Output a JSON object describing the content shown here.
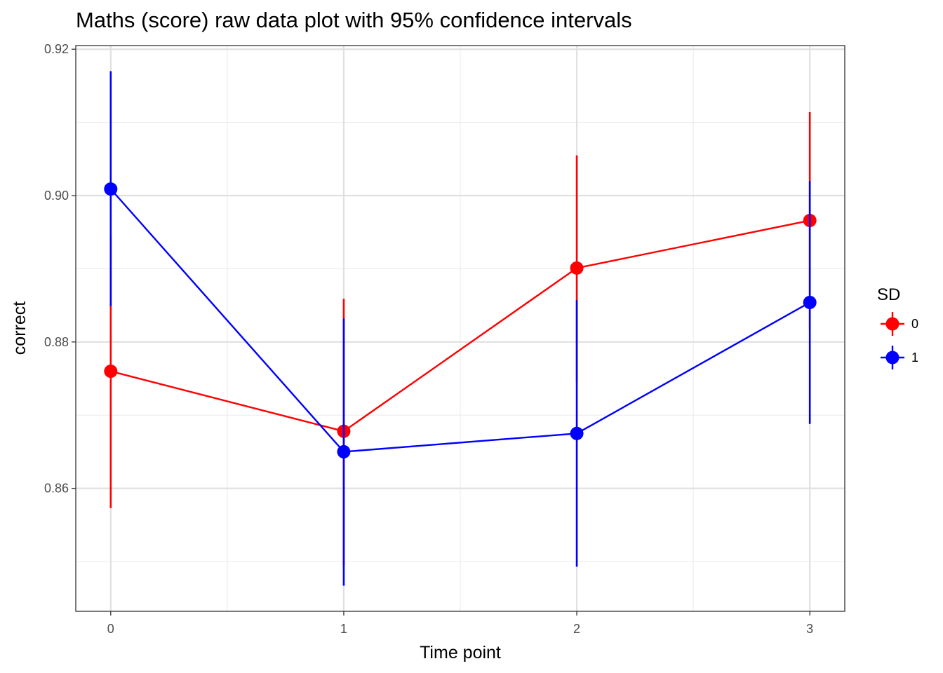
{
  "chart_data": {
    "type": "line",
    "title": "Maths (score) raw data plot with 95% confidence intervals",
    "xlabel": "Time point",
    "ylabel": "correct",
    "x": [
      0,
      1,
      2,
      3
    ],
    "x_ticks": [
      "0",
      "1",
      "2",
      "3"
    ],
    "xlim": [
      -0.15,
      3.15
    ],
    "y_ticks": [
      "0.86",
      "0.88",
      "0.90",
      "0.92"
    ],
    "y_tick_values": [
      0.86,
      0.88,
      0.9,
      0.92
    ],
    "ylim": [
      0.8432,
      0.9205
    ],
    "grid": true,
    "legend": {
      "title": "SD",
      "position": "right"
    },
    "series": [
      {
        "name": "0",
        "color": "#ff0000",
        "values": [
          0.876,
          0.8678,
          0.8901,
          0.8966
        ],
        "ci_lower": [
          0.8573,
          0.8495,
          0.8745,
          0.8818
        ],
        "ci_upper": [
          0.8946,
          0.8859,
          0.9055,
          0.9114
        ]
      },
      {
        "name": "1",
        "color": "#0000ff",
        "values": [
          0.9009,
          0.865,
          0.8675,
          0.8854
        ],
        "ci_lower": [
          0.8849,
          0.8467,
          0.8493,
          0.8688
        ],
        "ci_upper": [
          0.917,
          0.8832,
          0.8857,
          0.902
        ]
      }
    ]
  }
}
